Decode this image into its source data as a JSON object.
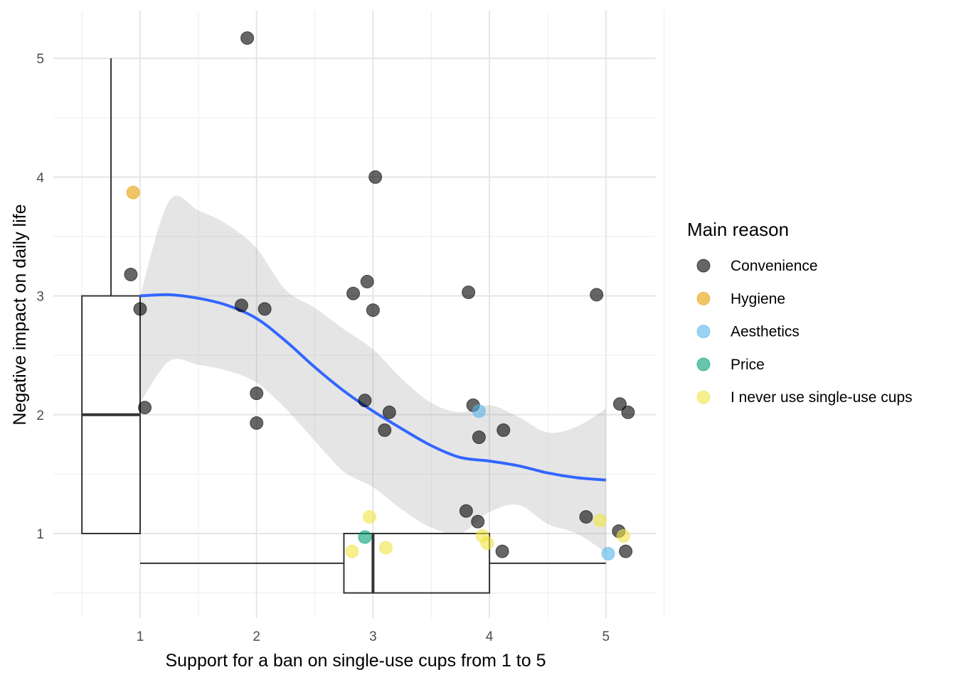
{
  "chart_data": {
    "type": "scatter",
    "xlabel": "Support for a ban on single-use cups from 1 to 5",
    "ylabel": "Negative impact on daily life",
    "xlim": [
      0.5,
      5.5
    ],
    "ylim": [
      0.3,
      5.3
    ],
    "x_ticks": [
      1,
      2,
      3,
      4,
      5
    ],
    "y_ticks": [
      1,
      2,
      3,
      4,
      5
    ],
    "x_tick_labels": [
      "1",
      "2",
      "3",
      "4",
      "5"
    ],
    "y_tick_labels": [
      "1",
      "2",
      "3",
      "4",
      "5"
    ],
    "grid": true,
    "legend": {
      "title": "Main reason",
      "position": "right",
      "entries": [
        {
          "name": "Convenience",
          "color": "#000000"
        },
        {
          "name": "Hygiene",
          "color": "#E69F00"
        },
        {
          "name": "Aesthetics",
          "color": "#56B4E9"
        },
        {
          "name": "Price",
          "color": "#009E73"
        },
        {
          "name": "I never use single-use cups",
          "color": "#F0E442"
        }
      ]
    },
    "point_alpha": 0.6,
    "points": [
      {
        "x": 1.92,
        "y": 5.17,
        "group": "Convenience"
      },
      {
        "x": 3.02,
        "y": 4.0,
        "group": "Convenience"
      },
      {
        "x": 0.92,
        "y": 3.18,
        "group": "Convenience"
      },
      {
        "x": 1.0,
        "y": 2.89,
        "group": "Convenience"
      },
      {
        "x": 1.04,
        "y": 2.06,
        "group": "Convenience"
      },
      {
        "x": 1.87,
        "y": 2.92,
        "group": "Convenience"
      },
      {
        "x": 2.07,
        "y": 2.89,
        "group": "Convenience"
      },
      {
        "x": 2.0,
        "y": 2.18,
        "group": "Convenience"
      },
      {
        "x": 2.0,
        "y": 1.93,
        "group": "Convenience"
      },
      {
        "x": 2.83,
        "y": 3.02,
        "group": "Convenience"
      },
      {
        "x": 2.95,
        "y": 3.12,
        "group": "Convenience"
      },
      {
        "x": 3.0,
        "y": 2.88,
        "group": "Convenience"
      },
      {
        "x": 2.93,
        "y": 2.12,
        "group": "Convenience"
      },
      {
        "x": 3.14,
        "y": 2.02,
        "group": "Convenience"
      },
      {
        "x": 3.1,
        "y": 1.87,
        "group": "Convenience"
      },
      {
        "x": 3.82,
        "y": 3.03,
        "group": "Convenience"
      },
      {
        "x": 3.86,
        "y": 2.08,
        "group": "Convenience"
      },
      {
        "x": 3.91,
        "y": 1.81,
        "group": "Convenience"
      },
      {
        "x": 4.12,
        "y": 1.87,
        "group": "Convenience"
      },
      {
        "x": 3.8,
        "y": 1.19,
        "group": "Convenience"
      },
      {
        "x": 3.9,
        "y": 1.1,
        "group": "Convenience"
      },
      {
        "x": 4.11,
        "y": 0.85,
        "group": "Convenience"
      },
      {
        "x": 4.92,
        "y": 3.01,
        "group": "Convenience"
      },
      {
        "x": 4.83,
        "y": 1.14,
        "group": "Convenience"
      },
      {
        "x": 5.12,
        "y": 2.09,
        "group": "Convenience"
      },
      {
        "x": 5.19,
        "y": 2.02,
        "group": "Convenience"
      },
      {
        "x": 5.11,
        "y": 1.02,
        "group": "Convenience"
      },
      {
        "x": 5.17,
        "y": 0.85,
        "group": "Convenience"
      },
      {
        "x": 0.94,
        "y": 3.87,
        "group": "Hygiene"
      },
      {
        "x": 3.91,
        "y": 2.03,
        "group": "Aesthetics"
      },
      {
        "x": 5.02,
        "y": 0.83,
        "group": "Aesthetics"
      },
      {
        "x": 2.93,
        "y": 0.97,
        "group": "Price"
      },
      {
        "x": 2.97,
        "y": 1.14,
        "group": "I never use single-use cups"
      },
      {
        "x": 2.82,
        "y": 0.85,
        "group": "I never use single-use cups"
      },
      {
        "x": 3.11,
        "y": 0.88,
        "group": "I never use single-use cups"
      },
      {
        "x": 3.94,
        "y": 0.98,
        "group": "I never use single-use cups"
      },
      {
        "x": 3.98,
        "y": 0.92,
        "group": "I never use single-use cups"
      },
      {
        "x": 4.95,
        "y": 1.11,
        "group": "I never use single-use cups"
      },
      {
        "x": 5.15,
        "y": 0.98,
        "group": "I never use single-use cups"
      }
    ],
    "smooth": {
      "color": "#3366FF",
      "x": [
        1.0,
        1.25,
        1.5,
        1.75,
        2.0,
        2.25,
        2.5,
        2.75,
        3.0,
        3.25,
        3.5,
        3.75,
        4.0,
        4.25,
        4.5,
        4.75,
        5.0
      ],
      "y": [
        3.0,
        3.01,
        2.98,
        2.92,
        2.81,
        2.62,
        2.4,
        2.2,
        2.03,
        1.88,
        1.74,
        1.64,
        1.61,
        1.57,
        1.51,
        1.47,
        1.45
      ],
      "lower": [
        2.1,
        2.45,
        2.42,
        2.37,
        2.27,
        2.05,
        1.78,
        1.52,
        1.39,
        1.2,
        1.05,
        1.0,
        1.18,
        1.24,
        1.08,
        1.0,
        0.84
      ],
      "upper": [
        3.0,
        3.8,
        3.72,
        3.6,
        3.4,
        3.05,
        2.9,
        2.72,
        2.55,
        2.3,
        2.1,
        2.02,
        2.08,
        1.98,
        1.85,
        1.9,
        2.05
      ]
    },
    "boxplot_y": {
      "description": "Negative impact on daily life",
      "x_position": 0.75,
      "q1": 1,
      "median": 2,
      "q3": 3,
      "whisker_low": 1,
      "whisker_high": 5
    },
    "boxplot_x": {
      "description": "Support for a ban",
      "y_position": 0.75,
      "q1": 2.75,
      "median": 3,
      "q3": 4,
      "whisker_low": 1,
      "whisker_high": 5
    }
  }
}
